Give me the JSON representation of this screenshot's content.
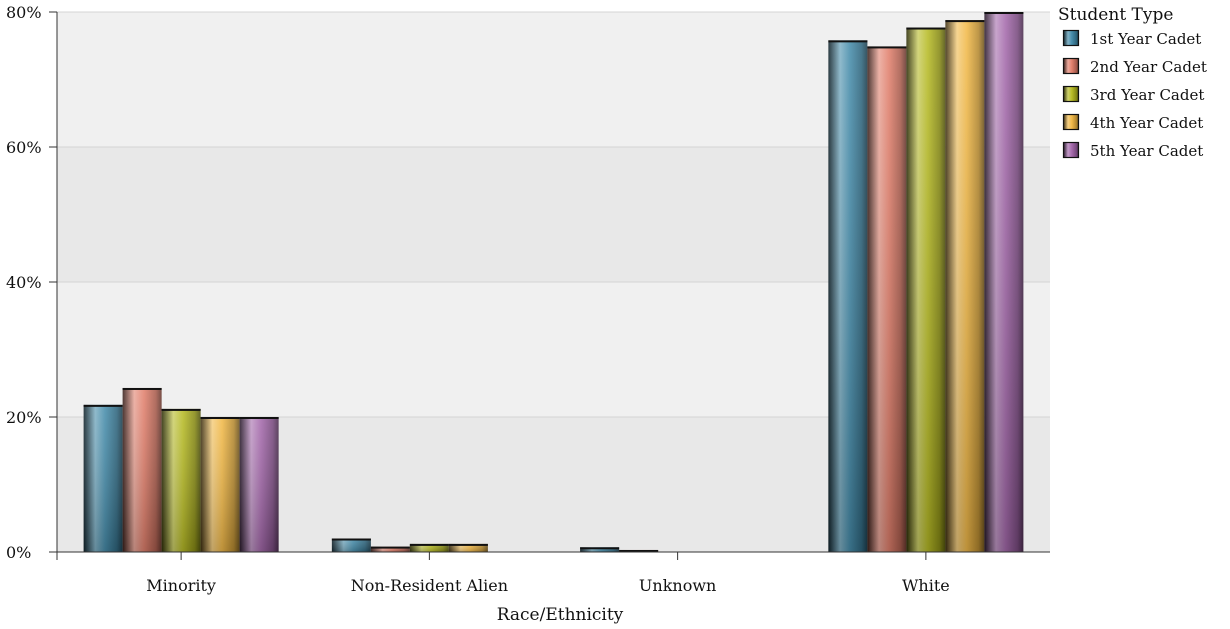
{
  "chart_data": {
    "type": "bar",
    "xlabel": "Race/Ethnicity",
    "ylabel": "",
    "ylim": [
      0,
      80
    ],
    "y_ticks": [
      "0%",
      "20%",
      "40%",
      "60%",
      "80%"
    ],
    "y_tick_values": [
      0,
      20,
      40,
      60,
      80
    ],
    "categories": [
      "Minority",
      "Non-Resident Alien",
      "Unknown",
      "White"
    ],
    "legend": {
      "title": "Student Type",
      "placement": "right-top"
    },
    "grid": true,
    "series": [
      {
        "name": "1st Year Cadet",
        "color": "#3e88a8",
        "values": [
          21.8,
          2.0,
          0.7,
          75.8
        ]
      },
      {
        "name": "2nd Year Cadet",
        "color": "#e07a66",
        "values": [
          24.3,
          0.8,
          0.3,
          74.9
        ]
      },
      {
        "name": "3rd Year Cadet",
        "color": "#b4b81c",
        "values": [
          21.2,
          1.2,
          0.0,
          77.7
        ]
      },
      {
        "name": "4th Year Cadet",
        "color": "#f1b640",
        "values": [
          20.0,
          1.2,
          0.0,
          78.8
        ]
      },
      {
        "name": "5th Year Cadet",
        "color": "#a062a8",
        "values": [
          20.0,
          0.0,
          0.0,
          80.0
        ]
      }
    ]
  }
}
